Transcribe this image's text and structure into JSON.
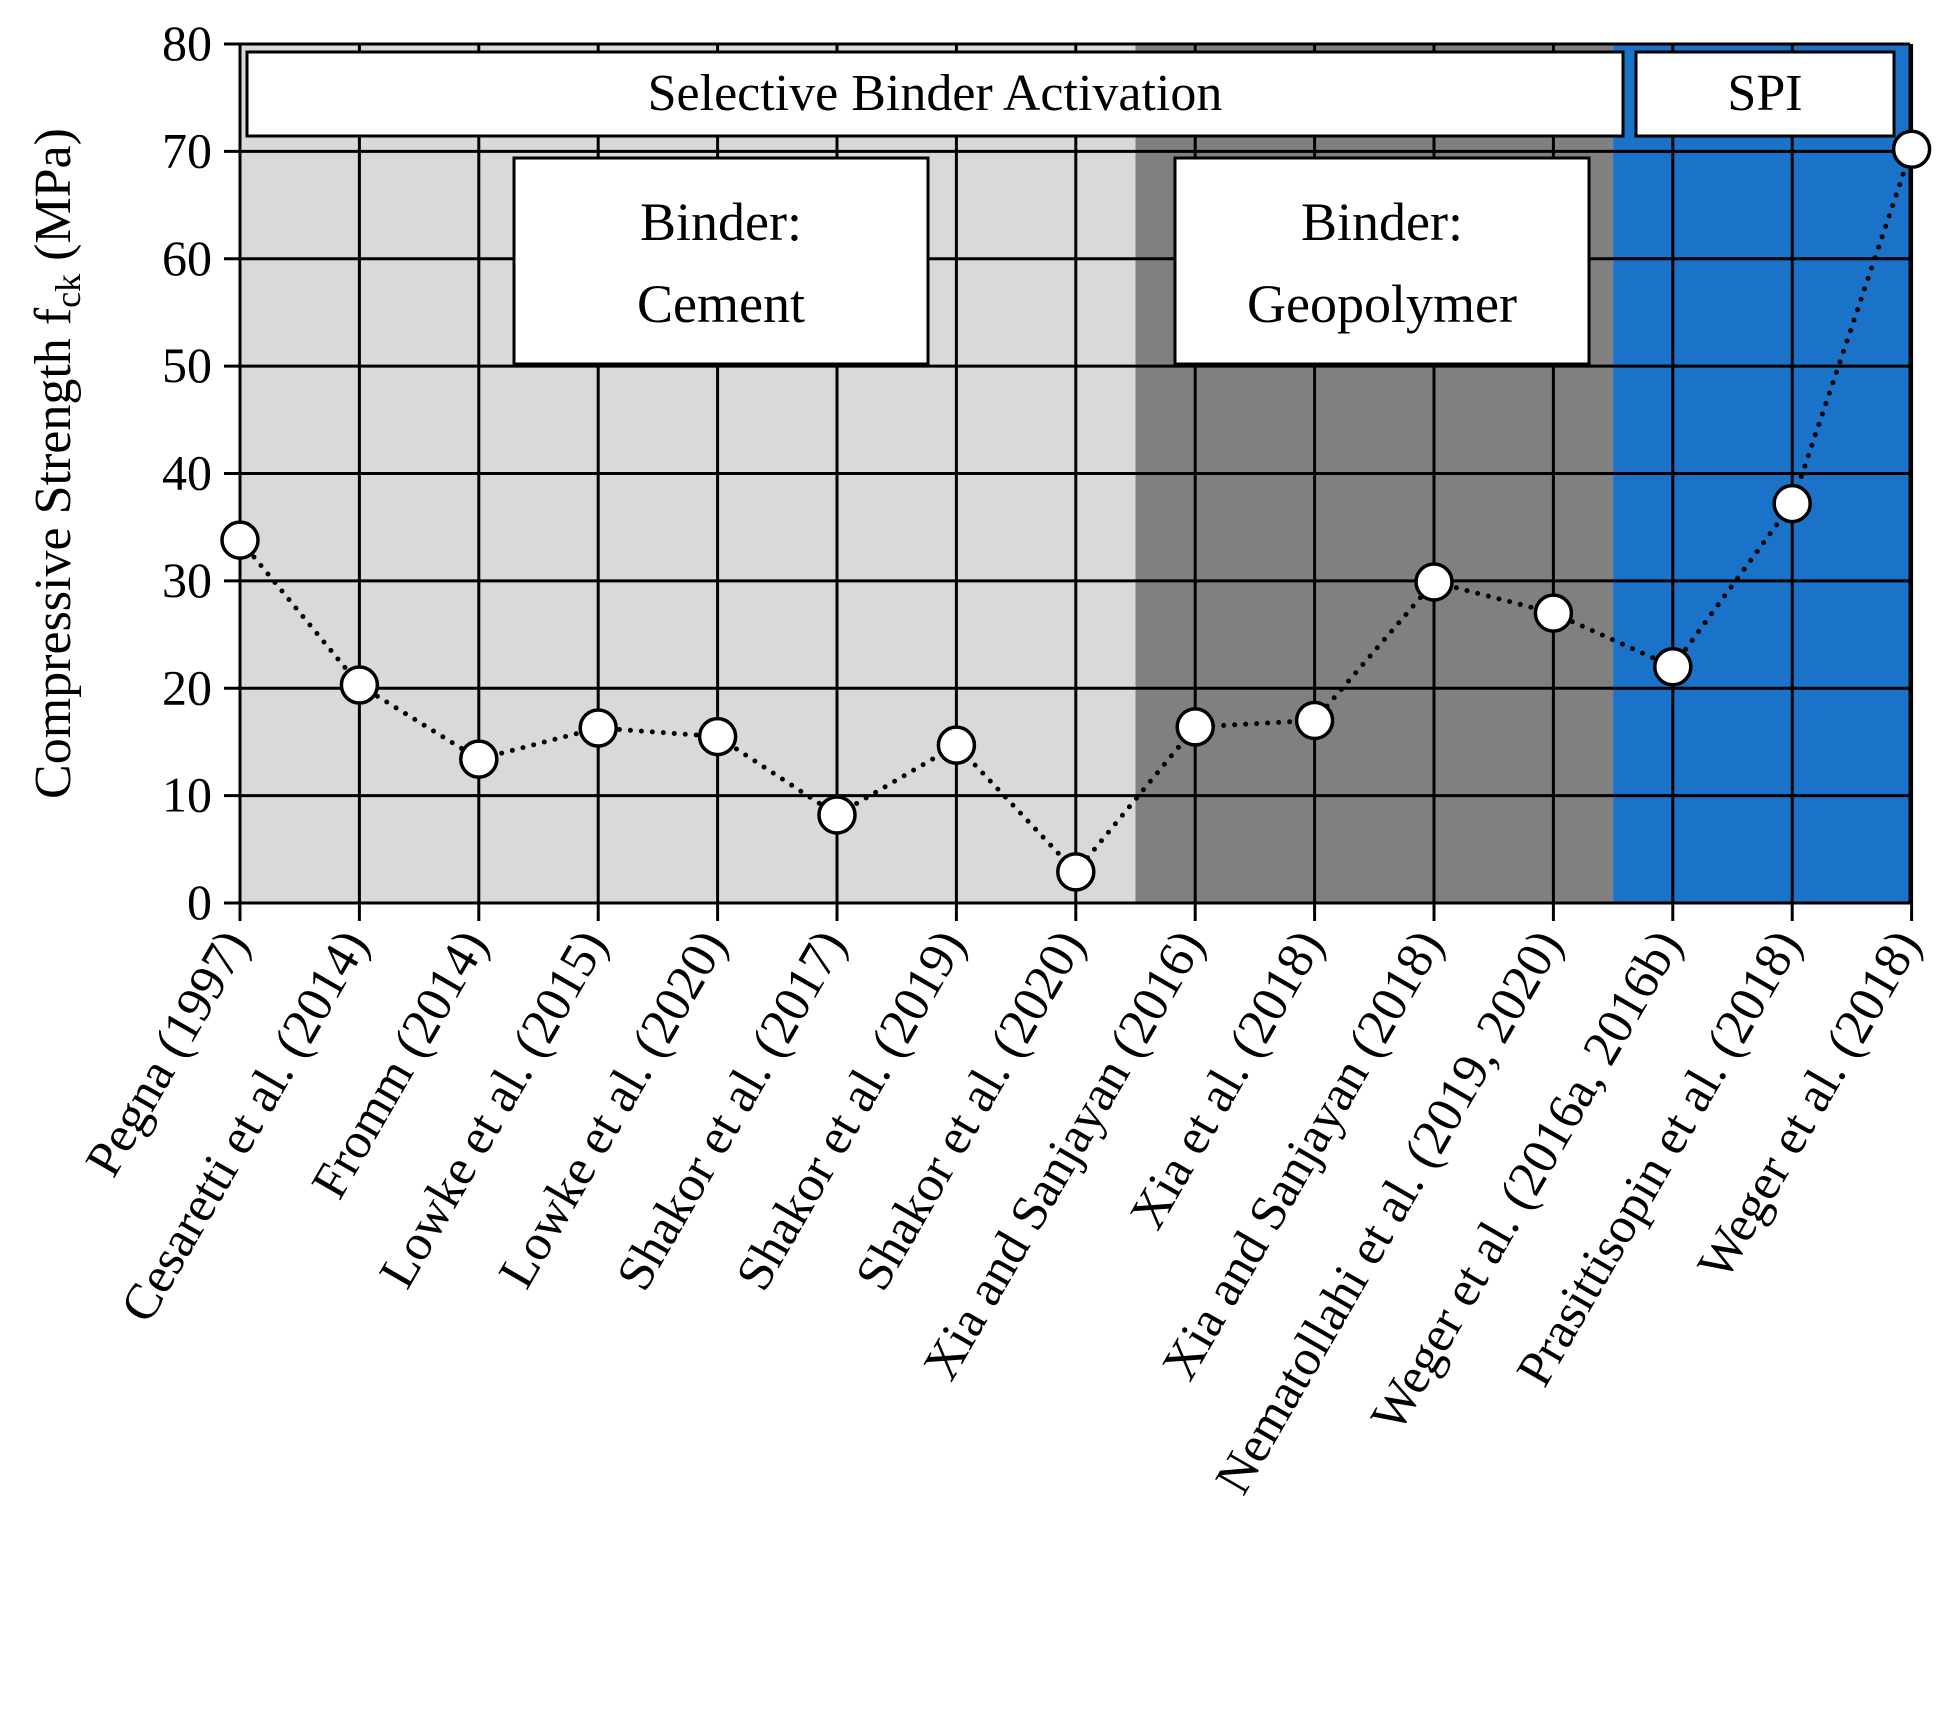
{
  "chart_data": {
    "type": "line",
    "ylabel_main": "Compressive Strength f",
    "ylabel_sub": "ck",
    "ylabel_unit": " (MPa)",
    "ylim": [
      0,
      80
    ],
    "yticks": [
      0,
      10,
      20,
      30,
      40,
      50,
      60,
      70,
      80
    ],
    "grid": true,
    "line_style": "dotted",
    "marker": "white-circle",
    "categories": [
      "Pegna (1997)",
      "Cesaretti et al. (2014)",
      "Fromm (2014)",
      "Lowke et al. (2015)",
      "Lowke et al. (2020)",
      "Shakor et al. (2017)",
      "Shakor et al. (2019)",
      "Shakor et al. (2020)",
      "Xia and Sanjayan (2016)",
      "Xia et al. (2018)",
      "Xia and Sanjayan (2018)",
      "Nematollahi et al. (2019, 2020)",
      "Weger et al. (2016a, 2016b)",
      "Prasittisopin et al. (2018)",
      "Weger et al. (2018)"
    ],
    "values": [
      33.8,
      20.3,
      13.4,
      16.3,
      15.5,
      8.2,
      14.7,
      2.9,
      16.4,
      17.0,
      29.9,
      27.0,
      22.0,
      37.2,
      70.2
    ],
    "regions": [
      {
        "from_index": 0,
        "to_index": 7,
        "color": "#d9d9d9"
      },
      {
        "from_index": 8,
        "to_index": 11,
        "color": "#808080"
      },
      {
        "from_index": 12,
        "to_index": 14,
        "color": "#1a73c9"
      }
    ],
    "annotations": [
      {
        "text_lines": [
          "Selective Binder Activation"
        ]
      },
      {
        "text_lines": [
          "SPI"
        ]
      },
      {
        "text_lines": [
          "Binder:",
          "Cement"
        ]
      },
      {
        "text_lines": [
          "Binder:",
          "Geopolymer"
        ]
      }
    ]
  }
}
